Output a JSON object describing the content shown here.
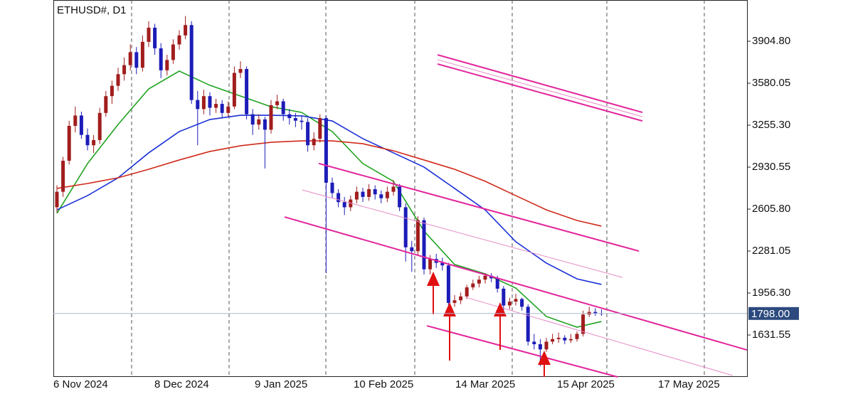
{
  "chart_data": {
    "type": "candlestick",
    "title": "ETHUSD#, D1",
    "ylim": [
      1307,
      4224
    ],
    "yticks": [
      {
        "value": 3904.8,
        "label": "3904.80"
      },
      3580.05,
      {
        "value": 3255.3,
        "label": "3255.30"
      },
      2930.55,
      {
        "value": 2605.8,
        "label": "2605.80"
      },
      2281.05,
      {
        "value": 1956.3,
        "label": "1956.30"
      },
      1631.55
    ],
    "x_labels": [
      "6 Nov 2024",
      "8 Dec 2024",
      "9 Jan 2025",
      "10 Feb 2025",
      "14 Mar 2025",
      "15 Apr 2025",
      "17 May 2025"
    ],
    "up_color": "#a11d1d",
    "down_color": "#1c1cb8",
    "open": [
      2620,
      2740,
      2980,
      3250,
      3330,
      3180,
      3100,
      3140,
      3350,
      3480,
      3560,
      3650,
      3720,
      3820,
      3700,
      3900,
      4010,
      3850,
      3680,
      3760,
      3880,
      3950,
      4030,
      3450,
      3380,
      3480,
      3390,
      3420,
      3350,
      3400,
      3660,
      3690,
      3340,
      3260,
      3300,
      3220,
      3410,
      3440,
      3340,
      3310,
      3290,
      3280,
      3100,
      3150,
      3310,
      2810,
      2730,
      2660,
      2620,
      2680,
      2740,
      2700,
      2760,
      2720,
      2690,
      2740,
      2780,
      2620,
      2310,
      2280,
      2520,
      2140,
      2220,
      2190,
      2170,
      1880,
      1900,
      1930,
      2000,
      2030,
      2060,
      2090,
      2070,
      1990,
      1860,
      1890,
      1910,
      1850,
      1580,
      1560,
      1520,
      1580,
      1600,
      1610,
      1590,
      1600,
      1640,
      1790,
      1810,
      1800
    ],
    "high": [
      2790,
      3010,
      3290,
      3400,
      3360,
      3230,
      3180,
      3390,
      3520,
      3600,
      3700,
      3780,
      3880,
      3860,
      3950,
      4060,
      4040,
      3890,
      3800,
      3920,
      3990,
      4100,
      4060,
      3520,
      3530,
      3510,
      3460,
      3450,
      3440,
      3710,
      3750,
      3710,
      3380,
      3340,
      3320,
      3450,
      3490,
      3460,
      3380,
      3350,
      3330,
      3310,
      3200,
      3340,
      3330,
      2850,
      2760,
      2700,
      2710,
      2780,
      2770,
      2800,
      2790,
      2750,
      2780,
      2830,
      2800,
      2650,
      2360,
      2550,
      2540,
      2250,
      2260,
      2230,
      2190,
      1940,
      1960,
      2020,
      2060,
      2090,
      2110,
      2110,
      2090,
      2010,
      1920,
      1950,
      1920,
      1870,
      1640,
      1600,
      1610,
      1640,
      1650,
      1630,
      1640,
      1660,
      1820,
      1850,
      1840,
      1830
    ],
    "low": [
      2580,
      2700,
      2950,
      3200,
      3150,
      3060,
      3040,
      3110,
      3320,
      3420,
      3520,
      3600,
      3680,
      3650,
      3670,
      3860,
      3800,
      3620,
      3640,
      3730,
      3840,
      3920,
      3420,
      3100,
      3340,
      3330,
      3350,
      3310,
      3320,
      3380,
      3620,
      3300,
      3180,
      3220,
      2920,
      3190,
      3380,
      3290,
      3260,
      3240,
      3220,
      3050,
      3060,
      3120,
      2110,
      2690,
      2620,
      2560,
      2590,
      2650,
      2660,
      2670,
      2680,
      2650,
      2660,
      2710,
      2590,
      2200,
      2120,
      2250,
      2100,
      2100,
      2150,
      2130,
      1860,
      1850,
      1870,
      1910,
      1980,
      2000,
      2030,
      2040,
      1960,
      1820,
      1830,
      1860,
      1820,
      1550,
      1520,
      1390,
      1500,
      1560,
      1570,
      1560,
      1570,
      1580,
      1620,
      1770,
      1780,
      1780
    ],
    "close": [
      2740,
      2980,
      3250,
      3330,
      3180,
      3100,
      3140,
      3350,
      3480,
      3560,
      3650,
      3720,
      3820,
      3700,
      3900,
      4010,
      3850,
      3680,
      3760,
      3880,
      3950,
      4030,
      3450,
      3380,
      3480,
      3390,
      3420,
      3350,
      3400,
      3660,
      3690,
      3340,
      3260,
      3300,
      3220,
      3410,
      3440,
      3340,
      3310,
      3290,
      3280,
      3100,
      3150,
      3310,
      2810,
      2730,
      2660,
      2620,
      2680,
      2740,
      2700,
      2760,
      2720,
      2690,
      2740,
      2780,
      2620,
      2310,
      2280,
      2520,
      2140,
      2220,
      2190,
      2170,
      1880,
      1900,
      1930,
      2000,
      2030,
      2060,
      2090,
      2070,
      1990,
      1860,
      1890,
      1910,
      1850,
      1580,
      1560,
      1520,
      1580,
      1600,
      1610,
      1590,
      1600,
      1640,
      1790,
      1810,
      1800,
      1798
    ],
    "moving_averages": [
      {
        "color": "#1fa31f",
        "values": [
          2573,
          2958,
          3261,
          3536,
          3674,
          3564,
          3481,
          3398,
          3354,
          3206,
          2958,
          2821,
          2436,
          2177,
          2105,
          1995,
          1775,
          1692,
          1736
        ]
      },
      {
        "color": "#1a2fd6",
        "values": [
          2600,
          2710,
          2848,
          3041,
          3206,
          3299,
          3332,
          3332,
          3327,
          3288,
          3151,
          3041,
          2931,
          2766,
          2600,
          2353,
          2188,
          2066,
          2023
        ]
      },
      {
        "color": "#d02a1a",
        "values": [
          2766,
          2804,
          2848,
          2914,
          2986,
          3052,
          3096,
          3123,
          3134,
          3134,
          3112,
          3057,
          2986,
          2914,
          2821,
          2710,
          2600,
          2518,
          2474
        ]
      }
    ],
    "trendlines": [
      {
        "style": "thick",
        "color": "#e2259c",
        "values": [
          3800,
          3354
        ]
      },
      {
        "style": "thin",
        "color": "#e58ac6",
        "values": [
          3762,
          3321
        ]
      },
      {
        "style": "thick",
        "color": "#e2259c",
        "values": [
          3729,
          3288
        ]
      },
      {
        "style": "thick",
        "color": "#e2259c",
        "values": [
          2959,
          2281
        ]
      },
      {
        "style": "thin",
        "color": "#e58ac6",
        "values": [
          2754,
          2077
        ]
      },
      {
        "style": "thick",
        "color": "#e2259c",
        "values": [
          2545,
          1516
        ]
      },
      {
        "style": "thick",
        "color": "#e2259c",
        "values": [
          1703,
          1307
        ]
      },
      {
        "style": "thin",
        "color": "#e58ac6",
        "values": [
          1923,
          1318
        ]
      }
    ],
    "last_price": {
      "value": 1798,
      "label": "1798.00"
    },
    "last_price_color": "#2c4a7e"
  }
}
